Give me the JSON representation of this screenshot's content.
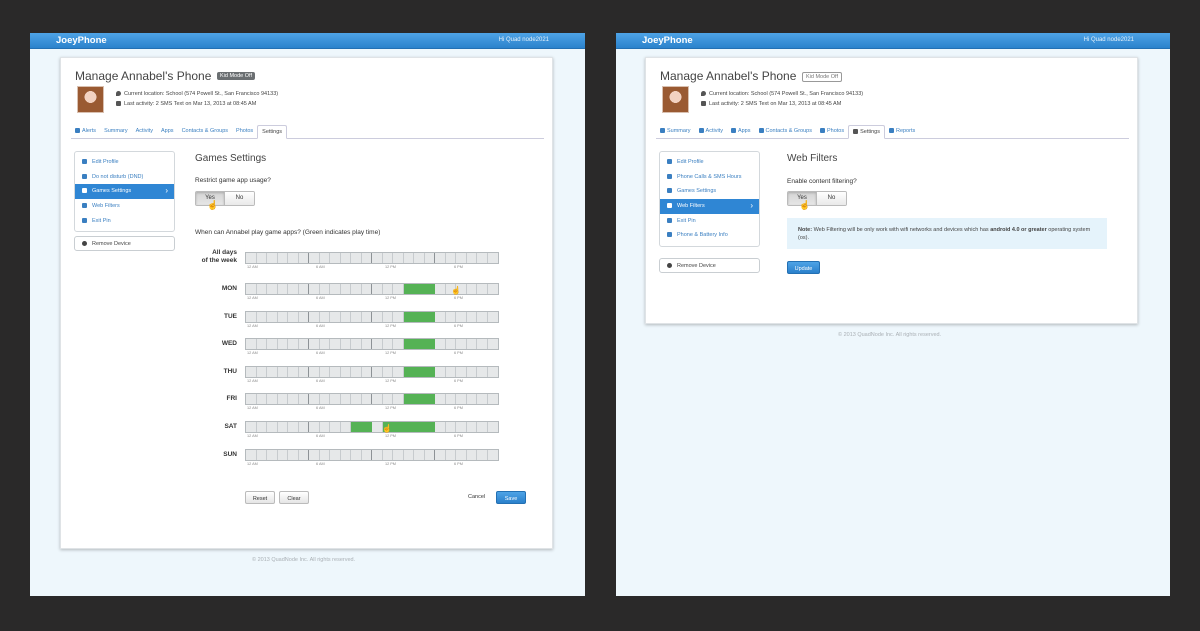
{
  "left_screen": {
    "app": {
      "brand": "JoeyPhone",
      "account": "Hi Quad node2021"
    },
    "header": {
      "title": "Manage Annabel's Phone",
      "kid_mode_badge": "Kid Mode Off",
      "location_label": "Current location:",
      "location_value": "School (574 Powell St., San Francisco 94133)",
      "activity_label": "Last activity:",
      "activity_value": "2 SMS Text on Mar 13, 2013 at 08:45 AM"
    },
    "tabs": [
      {
        "label": "Alerts",
        "icon": "alert-icon"
      },
      {
        "label": "Summary"
      },
      {
        "label": "Activity"
      },
      {
        "label": "Apps"
      },
      {
        "label": "Contacts & Groups"
      },
      {
        "label": "Photos"
      },
      {
        "label": "Settings",
        "active": true
      }
    ],
    "sidebar": {
      "items": [
        {
          "label": "Edit Profile",
          "icon": "user-icon"
        },
        {
          "label": "Do not disturb (DND)",
          "icon": "dnd-icon"
        },
        {
          "label": "Games Settings",
          "icon": "gamepad-icon",
          "active": true
        },
        {
          "label": "Web Filters",
          "icon": "globe-icon"
        },
        {
          "label": "Exit Pin",
          "icon": "key-icon"
        }
      ],
      "remove_label": "Remove Device"
    },
    "main": {
      "title": "Games Settings",
      "question": "Restrict game app usage?",
      "yes": "Yes",
      "no": "No",
      "selected": "Yes",
      "schedule_question": "When can Annabel play game apps? (Green indicates play time)"
    },
    "schedule": {
      "tick_labels": [
        "12 AM",
        "6 AM",
        "12 PM",
        "6 PM"
      ],
      "rows": [
        {
          "label_line1": "All days",
          "label_line2": "of the week",
          "on_hours": []
        },
        {
          "label_line1": "MON",
          "on_hours": [
            15,
            16,
            17
          ]
        },
        {
          "label_line1": "TUE",
          "on_hours": [
            15,
            16,
            17
          ]
        },
        {
          "label_line1": "WED",
          "on_hours": [
            15,
            16,
            17
          ]
        },
        {
          "label_line1": "THU",
          "on_hours": [
            15,
            16,
            17
          ]
        },
        {
          "label_line1": "FRI",
          "on_hours": [
            15,
            16,
            17
          ]
        },
        {
          "label_line1": "SAT",
          "on_hours": [
            10,
            11,
            13,
            14,
            15,
            16,
            17
          ]
        },
        {
          "label_line1": "SUN",
          "on_hours": []
        }
      ]
    },
    "actions": {
      "reset": "Reset",
      "clear": "Clear",
      "cancel": "Cancel",
      "save": "Save"
    },
    "footer": "© 2013 QuadNode Inc. All rights reserved."
  },
  "right_screen": {
    "app": {
      "brand": "JoeyPhone",
      "account": "Hi Quad node2021"
    },
    "header": {
      "title": "Manage Annabel's Phone",
      "kid_mode_badge": "Kid Mode Off",
      "location_label": "Current location:",
      "location_value": "School (574 Powell St., San Francisco 94133)",
      "activity_label": "Last activity:",
      "activity_value": "2 SMS Text on Mar 13, 2013 at 08:45 AM"
    },
    "tabs": [
      {
        "label": "Summary",
        "icon": "edit-icon"
      },
      {
        "label": "Activity",
        "icon": "list-icon"
      },
      {
        "label": "Apps",
        "icon": "pencil-icon"
      },
      {
        "label": "Contacts & Groups",
        "icon": "phone-icon"
      },
      {
        "label": "Photos",
        "icon": "camera-icon"
      },
      {
        "label": "Settings",
        "icon": "gear-icon",
        "active": true
      },
      {
        "label": "Reports",
        "icon": "chart-icon"
      }
    ],
    "sidebar": {
      "items": [
        {
          "label": "Edit Profile",
          "icon": "user-icon"
        },
        {
          "label": "Phone Calls & SMS Hours",
          "icon": "phone-icon"
        },
        {
          "label": "Games Settings",
          "icon": "gamepad-icon"
        },
        {
          "label": "Web Filters",
          "icon": "globe-icon",
          "active": true
        },
        {
          "label": "Exit Pin",
          "icon": "key-icon"
        },
        {
          "label": "Phone & Battery Info",
          "icon": "mobile-icon"
        }
      ],
      "remove_label": "Remove Device"
    },
    "main": {
      "title": "Web Filters",
      "question": "Enable content filtering?",
      "yes": "Yes",
      "no": "No",
      "selected": "Yes",
      "note_bold": "Note:",
      "note_text": "Web Filtering will be only work with wifi networks and devices which has",
      "note_bold2": "android 4.0 or greater",
      "note_tail": "operating system (os).",
      "update": "Update"
    },
    "footer": "© 2013 QuadNode Inc. All rights reserved."
  }
}
